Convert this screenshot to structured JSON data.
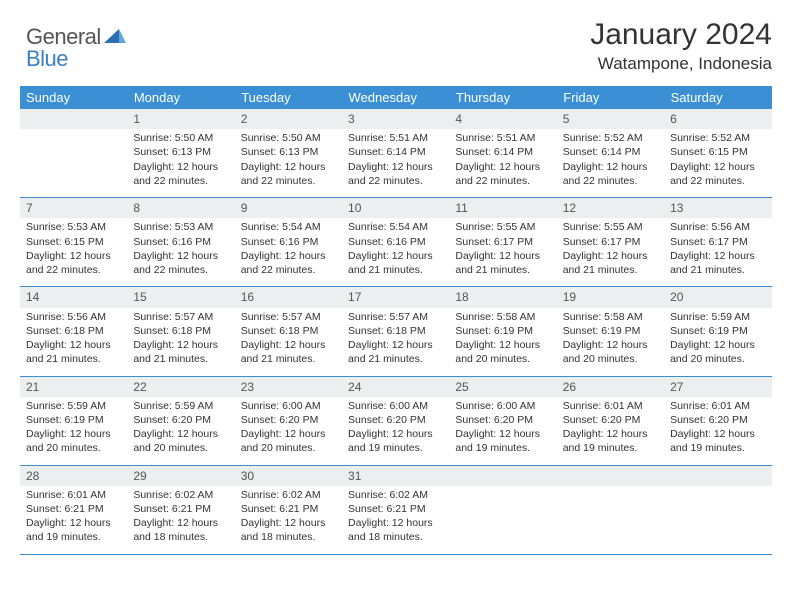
{
  "logo": {
    "part1": "General",
    "part2": "Blue"
  },
  "title": "January 2024",
  "location": "Watampone, Indonesia",
  "colors": {
    "header_bg": "#3b8fd4",
    "header_text": "#ffffff",
    "daynum_bg": "#eceef0",
    "border": "#3b8fd4",
    "text": "#333333",
    "logo_accent": "#3b7fc4"
  },
  "columns": [
    "Sunday",
    "Monday",
    "Tuesday",
    "Wednesday",
    "Thursday",
    "Friday",
    "Saturday"
  ],
  "weeks": [
    {
      "nums": [
        "",
        "1",
        "2",
        "3",
        "4",
        "5",
        "6"
      ],
      "details": [
        "",
        "Sunrise: 5:50 AM\nSunset: 6:13 PM\nDaylight: 12 hours and 22 minutes.",
        "Sunrise: 5:50 AM\nSunset: 6:13 PM\nDaylight: 12 hours and 22 minutes.",
        "Sunrise: 5:51 AM\nSunset: 6:14 PM\nDaylight: 12 hours and 22 minutes.",
        "Sunrise: 5:51 AM\nSunset: 6:14 PM\nDaylight: 12 hours and 22 minutes.",
        "Sunrise: 5:52 AM\nSunset: 6:14 PM\nDaylight: 12 hours and 22 minutes.",
        "Sunrise: 5:52 AM\nSunset: 6:15 PM\nDaylight: 12 hours and 22 minutes."
      ]
    },
    {
      "nums": [
        "7",
        "8",
        "9",
        "10",
        "11",
        "12",
        "13"
      ],
      "details": [
        "Sunrise: 5:53 AM\nSunset: 6:15 PM\nDaylight: 12 hours and 22 minutes.",
        "Sunrise: 5:53 AM\nSunset: 6:16 PM\nDaylight: 12 hours and 22 minutes.",
        "Sunrise: 5:54 AM\nSunset: 6:16 PM\nDaylight: 12 hours and 22 minutes.",
        "Sunrise: 5:54 AM\nSunset: 6:16 PM\nDaylight: 12 hours and 21 minutes.",
        "Sunrise: 5:55 AM\nSunset: 6:17 PM\nDaylight: 12 hours and 21 minutes.",
        "Sunrise: 5:55 AM\nSunset: 6:17 PM\nDaylight: 12 hours and 21 minutes.",
        "Sunrise: 5:56 AM\nSunset: 6:17 PM\nDaylight: 12 hours and 21 minutes."
      ]
    },
    {
      "nums": [
        "14",
        "15",
        "16",
        "17",
        "18",
        "19",
        "20"
      ],
      "details": [
        "Sunrise: 5:56 AM\nSunset: 6:18 PM\nDaylight: 12 hours and 21 minutes.",
        "Sunrise: 5:57 AM\nSunset: 6:18 PM\nDaylight: 12 hours and 21 minutes.",
        "Sunrise: 5:57 AM\nSunset: 6:18 PM\nDaylight: 12 hours and 21 minutes.",
        "Sunrise: 5:57 AM\nSunset: 6:18 PM\nDaylight: 12 hours and 21 minutes.",
        "Sunrise: 5:58 AM\nSunset: 6:19 PM\nDaylight: 12 hours and 20 minutes.",
        "Sunrise: 5:58 AM\nSunset: 6:19 PM\nDaylight: 12 hours and 20 minutes.",
        "Sunrise: 5:59 AM\nSunset: 6:19 PM\nDaylight: 12 hours and 20 minutes."
      ]
    },
    {
      "nums": [
        "21",
        "22",
        "23",
        "24",
        "25",
        "26",
        "27"
      ],
      "details": [
        "Sunrise: 5:59 AM\nSunset: 6:19 PM\nDaylight: 12 hours and 20 minutes.",
        "Sunrise: 5:59 AM\nSunset: 6:20 PM\nDaylight: 12 hours and 20 minutes.",
        "Sunrise: 6:00 AM\nSunset: 6:20 PM\nDaylight: 12 hours and 20 minutes.",
        "Sunrise: 6:00 AM\nSunset: 6:20 PM\nDaylight: 12 hours and 19 minutes.",
        "Sunrise: 6:00 AM\nSunset: 6:20 PM\nDaylight: 12 hours and 19 minutes.",
        "Sunrise: 6:01 AM\nSunset: 6:20 PM\nDaylight: 12 hours and 19 minutes.",
        "Sunrise: 6:01 AM\nSunset: 6:20 PM\nDaylight: 12 hours and 19 minutes."
      ]
    },
    {
      "nums": [
        "28",
        "29",
        "30",
        "31",
        "",
        "",
        ""
      ],
      "details": [
        "Sunrise: 6:01 AM\nSunset: 6:21 PM\nDaylight: 12 hours and 19 minutes.",
        "Sunrise: 6:02 AM\nSunset: 6:21 PM\nDaylight: 12 hours and 18 minutes.",
        "Sunrise: 6:02 AM\nSunset: 6:21 PM\nDaylight: 12 hours and 18 minutes.",
        "Sunrise: 6:02 AM\nSunset: 6:21 PM\nDaylight: 12 hours and 18 minutes.",
        "",
        "",
        ""
      ]
    }
  ]
}
